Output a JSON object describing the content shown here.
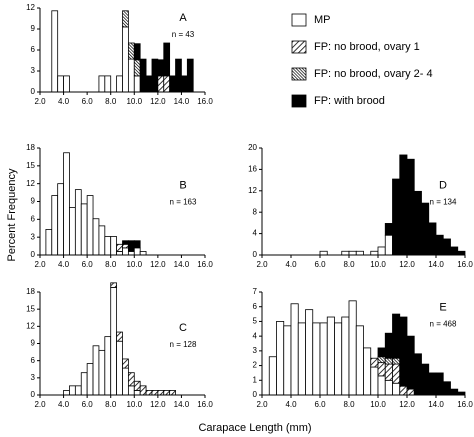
{
  "y_label": "Percent Frequency",
  "x_label": "Carapace Length (mm)",
  "chart_data": [
    {
      "type": "histogram",
      "label": "A",
      "annotation": "n = 43",
      "bins": [
        2,
        2.5,
        3,
        3.5,
        4,
        4.5,
        5,
        5.5,
        6,
        6.5,
        7,
        7.5,
        8,
        8.5,
        9,
        9.5,
        10,
        10.5,
        11,
        11.5,
        12,
        12.5,
        13,
        13.5,
        14,
        14.5,
        15,
        15.5,
        16
      ],
      "xlim": [
        2,
        16
      ],
      "xticks": [
        {
          "value": 2,
          "label": "2.0"
        },
        {
          "value": 4,
          "label": "4.0"
        },
        {
          "value": 6,
          "label": "6.0"
        },
        {
          "value": 8,
          "label": "8.0"
        },
        {
          "value": 10,
          "label": "10.0"
        },
        {
          "value": 12,
          "label": "12.0"
        },
        {
          "value": 14,
          "label": "14.0"
        },
        {
          "value": 16,
          "label": "16.0"
        }
      ],
      "ylim": [
        0,
        12
      ],
      "yticks": [
        0,
        3,
        6,
        9,
        12
      ],
      "legend": "top-right",
      "series": [
        {
          "name": "MP",
          "color": "#ffffff",
          "pattern": "solid",
          "values": [
            0,
            0,
            11.6,
            2.3,
            2.3,
            0,
            0,
            0,
            0,
            0,
            2.3,
            2.3,
            0,
            2.3,
            9.3,
            4.7,
            2.3,
            0,
            0,
            0,
            0,
            0,
            0,
            0,
            0,
            0,
            0,
            0
          ]
        },
        {
          "name": "FP: no brood, ovary 1",
          "color": "#000000",
          "pattern": "hatch",
          "values": [
            0,
            0,
            0,
            0,
            0,
            0,
            0,
            0,
            0,
            0,
            0,
            0,
            0,
            0,
            0,
            0,
            0,
            0,
            0,
            0,
            2.3,
            2.3,
            0,
            0,
            0,
            0,
            0,
            0
          ]
        },
        {
          "name": "FP: no brood, ovary 2- 4",
          "color": "#000000",
          "pattern": "dense",
          "values": [
            0,
            0,
            0,
            0,
            0,
            0,
            0,
            0,
            0,
            0,
            0,
            0,
            0,
            0,
            2.3,
            2.3,
            2.3,
            0,
            0,
            0,
            0,
            0,
            0,
            0,
            0,
            0,
            0,
            0
          ]
        },
        {
          "name": "FP: with brood",
          "color": "#000000",
          "pattern": "solid",
          "values": [
            0,
            0,
            0,
            0,
            0,
            0,
            0,
            0,
            0,
            0,
            0,
            0,
            0,
            0,
            0,
            0,
            2.3,
            4.7,
            2.3,
            4.7,
            2.3,
            4.7,
            2.3,
            4.7,
            2.3,
            4.7,
            0,
            0
          ]
        }
      ]
    },
    {
      "type": "histogram",
      "label": "B",
      "annotation": "n = 163",
      "bins": [
        2,
        2.5,
        3,
        3.5,
        4,
        4.5,
        5,
        5.5,
        6,
        6.5,
        7,
        7.5,
        8,
        8.5,
        9,
        9.5,
        10,
        10.5,
        11,
        11.5,
        12,
        12.5,
        13,
        13.5,
        14,
        14.5,
        15,
        15.5,
        16
      ],
      "xlim": [
        2,
        16
      ],
      "xticks": [
        {
          "value": 2,
          "label": "2.0"
        },
        {
          "value": 4,
          "label": "4.0"
        },
        {
          "value": 6,
          "label": "6.0"
        },
        {
          "value": 8,
          "label": "8.0"
        },
        {
          "value": 10,
          "label": "10.0"
        },
        {
          "value": 12,
          "label": "12.0"
        },
        {
          "value": 14,
          "label": "14.0"
        },
        {
          "value": 16,
          "label": "16.0"
        }
      ],
      "ylim": [
        0,
        18
      ],
      "yticks": [
        0,
        3,
        6,
        9,
        12,
        15,
        18
      ],
      "series": [
        {
          "color": "#ffffff",
          "pattern": "solid",
          "values": [
            0,
            4.3,
            10,
            12,
            17.2,
            8,
            11,
            8.6,
            10,
            6.1,
            4.9,
            3.1,
            3.1,
            0.6,
            1.2,
            0.6,
            1.2,
            0.6,
            0,
            0,
            0,
            0,
            0,
            0,
            0,
            0,
            0,
            0
          ]
        },
        {
          "color": "#000000",
          "pattern": "hatch",
          "values": [
            0,
            0,
            0,
            0,
            0,
            0,
            0,
            0,
            0,
            0,
            0,
            0,
            0,
            1.2,
            0.6,
            0,
            0,
            0,
            0,
            0,
            0,
            0,
            0,
            0,
            0,
            0,
            0,
            0
          ]
        },
        {
          "color": "#000000",
          "pattern": "solid",
          "values": [
            0,
            0,
            0,
            0,
            0,
            0,
            0,
            0,
            0,
            0,
            0,
            0,
            0,
            0,
            0.6,
            1.8,
            1.2,
            0,
            0,
            0,
            0,
            0,
            0,
            0,
            0,
            0,
            0,
            0
          ]
        }
      ]
    },
    {
      "type": "histogram",
      "label": "D",
      "annotation": "n = 134",
      "bins": [
        2,
        2.5,
        3,
        3.5,
        4,
        4.5,
        5,
        5.5,
        6,
        6.5,
        7,
        7.5,
        8,
        8.5,
        9,
        9.5,
        10,
        10.5,
        11,
        11.5,
        12,
        12.5,
        13,
        13.5,
        14,
        14.5,
        15,
        15.5,
        16
      ],
      "xlim": [
        2,
        16
      ],
      "xticks": [
        {
          "value": 2,
          "label": "2.0"
        },
        {
          "value": 4,
          "label": "4.0"
        },
        {
          "value": 6,
          "label": "6.0"
        },
        {
          "value": 8,
          "label": "8.0"
        },
        {
          "value": 10,
          "label": "10.0"
        },
        {
          "value": 12,
          "label": "12.0"
        },
        {
          "value": 14,
          "label": "14.0"
        },
        {
          "value": 16,
          "label": "16.0"
        }
      ],
      "ylim": [
        0,
        20
      ],
      "yticks": [
        0,
        4,
        8,
        12,
        16,
        20
      ],
      "series": [
        {
          "color": "#ffffff",
          "pattern": "solid",
          "values": [
            0,
            0,
            0,
            0,
            0,
            0,
            0,
            0,
            0.7,
            0,
            0,
            0.7,
            0.7,
            0.7,
            0,
            0.7,
            1.5,
            3.7,
            0,
            0,
            0,
            0,
            0,
            0,
            0,
            0,
            0,
            0
          ]
        },
        {
          "color": "#000000",
          "pattern": "solid",
          "values": [
            0,
            0,
            0,
            0,
            0,
            0,
            0,
            0,
            0,
            0,
            0,
            0,
            0,
            0,
            0,
            0,
            0,
            2.2,
            14.2,
            18.7,
            17.9,
            11.9,
            9.7,
            6,
            3.7,
            3,
            1.5,
            0.7
          ]
        }
      ]
    },
    {
      "type": "histogram",
      "label": "C",
      "annotation": "n = 128",
      "bins": [
        2,
        2.5,
        3,
        3.5,
        4,
        4.5,
        5,
        5.5,
        6,
        6.5,
        7,
        7.5,
        8,
        8.5,
        9,
        9.5,
        10,
        10.5,
        11,
        11.5,
        12,
        12.5,
        13,
        13.5,
        14,
        14.5,
        15,
        15.5,
        16
      ],
      "xlim": [
        2,
        16
      ],
      "xticks": [
        {
          "value": 2,
          "label": "2.0"
        },
        {
          "value": 4,
          "label": "4.0"
        },
        {
          "value": 6,
          "label": "6.0"
        },
        {
          "value": 8,
          "label": "8.0"
        },
        {
          "value": 10,
          "label": "10.0"
        },
        {
          "value": 12,
          "label": "12.0"
        },
        {
          "value": 14,
          "label": "14.0"
        },
        {
          "value": 16,
          "label": "16.0"
        }
      ],
      "ylim": [
        0,
        18
      ],
      "yticks": [
        0,
        3,
        6,
        9,
        12,
        15,
        18
      ],
      "series": [
        {
          "color": "#ffffff",
          "pattern": "solid",
          "values": [
            0,
            0,
            0,
            0,
            0.8,
            1.6,
            1.6,
            3.9,
            5.5,
            8.6,
            7.8,
            10.2,
            18.8,
            9.4,
            4.7,
            1.6,
            0.8,
            0,
            0,
            0,
            0,
            0,
            0,
            0,
            0,
            0,
            0,
            0
          ]
        },
        {
          "color": "#000000",
          "pattern": "hatch",
          "values": [
            0,
            0,
            0,
            0,
            0,
            0,
            0,
            0,
            0,
            0,
            0,
            0,
            0.8,
            1.6,
            1.6,
            2.3,
            1.6,
            1.6,
            0.8,
            0.8,
            0.8,
            0.8,
            0.8,
            0,
            0,
            0,
            0,
            0
          ]
        }
      ]
    },
    {
      "type": "histogram",
      "label": "E",
      "annotation": "n = 468",
      "bins": [
        2,
        2.5,
        3,
        3.5,
        4,
        4.5,
        5,
        5.5,
        6,
        6.5,
        7,
        7.5,
        8,
        8.5,
        9,
        9.5,
        10,
        10.5,
        11,
        11.5,
        12,
        12.5,
        13,
        13.5,
        14,
        14.5,
        15,
        15.5,
        16
      ],
      "xlim": [
        2,
        16
      ],
      "xticks": [
        {
          "value": 2,
          "label": "2.0"
        },
        {
          "value": 4,
          "label": "4.0"
        },
        {
          "value": 6,
          "label": "6.0"
        },
        {
          "value": 8,
          "label": "8.0"
        },
        {
          "value": 10,
          "label": "10.0"
        },
        {
          "value": 12,
          "label": "12.0"
        },
        {
          "value": 14,
          "label": "14.0"
        },
        {
          "value": 16,
          "label": "16.0"
        }
      ],
      "ylim": [
        0,
        7
      ],
      "yticks": [
        0,
        1,
        2,
        3,
        4,
        5,
        6,
        7
      ],
      "series": [
        {
          "color": "#ffffff",
          "pattern": "solid",
          "values": [
            0,
            2.6,
            5,
            4.7,
            6.2,
            4.9,
            5.8,
            4.9,
            4.9,
            5.3,
            4.9,
            5.3,
            6.4,
            4.7,
            3.2,
            1.9,
            1.3,
            1,
            0.8,
            0,
            0,
            0,
            0,
            0,
            0,
            0,
            0,
            0
          ]
        },
        {
          "color": "#000000",
          "pattern": "hatch",
          "values": [
            0,
            0,
            0,
            0,
            0,
            0,
            0,
            0,
            0,
            0,
            0,
            0,
            0,
            0,
            0,
            0.6,
            0.9,
            1.1,
            1.3,
            0.6,
            0.4,
            0,
            0,
            0,
            0,
            0,
            0,
            0
          ]
        },
        {
          "color": "#000000",
          "pattern": "dense",
          "values": [
            0,
            0,
            0,
            0,
            0,
            0,
            0,
            0,
            0,
            0,
            0,
            0,
            0,
            0,
            0,
            0,
            0.4,
            0.4,
            0.4,
            0,
            0,
            0,
            0,
            0,
            0,
            0,
            0,
            0
          ]
        },
        {
          "color": "#000000",
          "pattern": "solid",
          "values": [
            0,
            0,
            0,
            0,
            0,
            0,
            0,
            0,
            0,
            0,
            0,
            0,
            0,
            0,
            0,
            0,
            0.6,
            1.7,
            3,
            4.7,
            3.6,
            2.8,
            2.1,
            1.5,
            1.5,
            0.9,
            0.4,
            0.2
          ]
        }
      ]
    }
  ]
}
